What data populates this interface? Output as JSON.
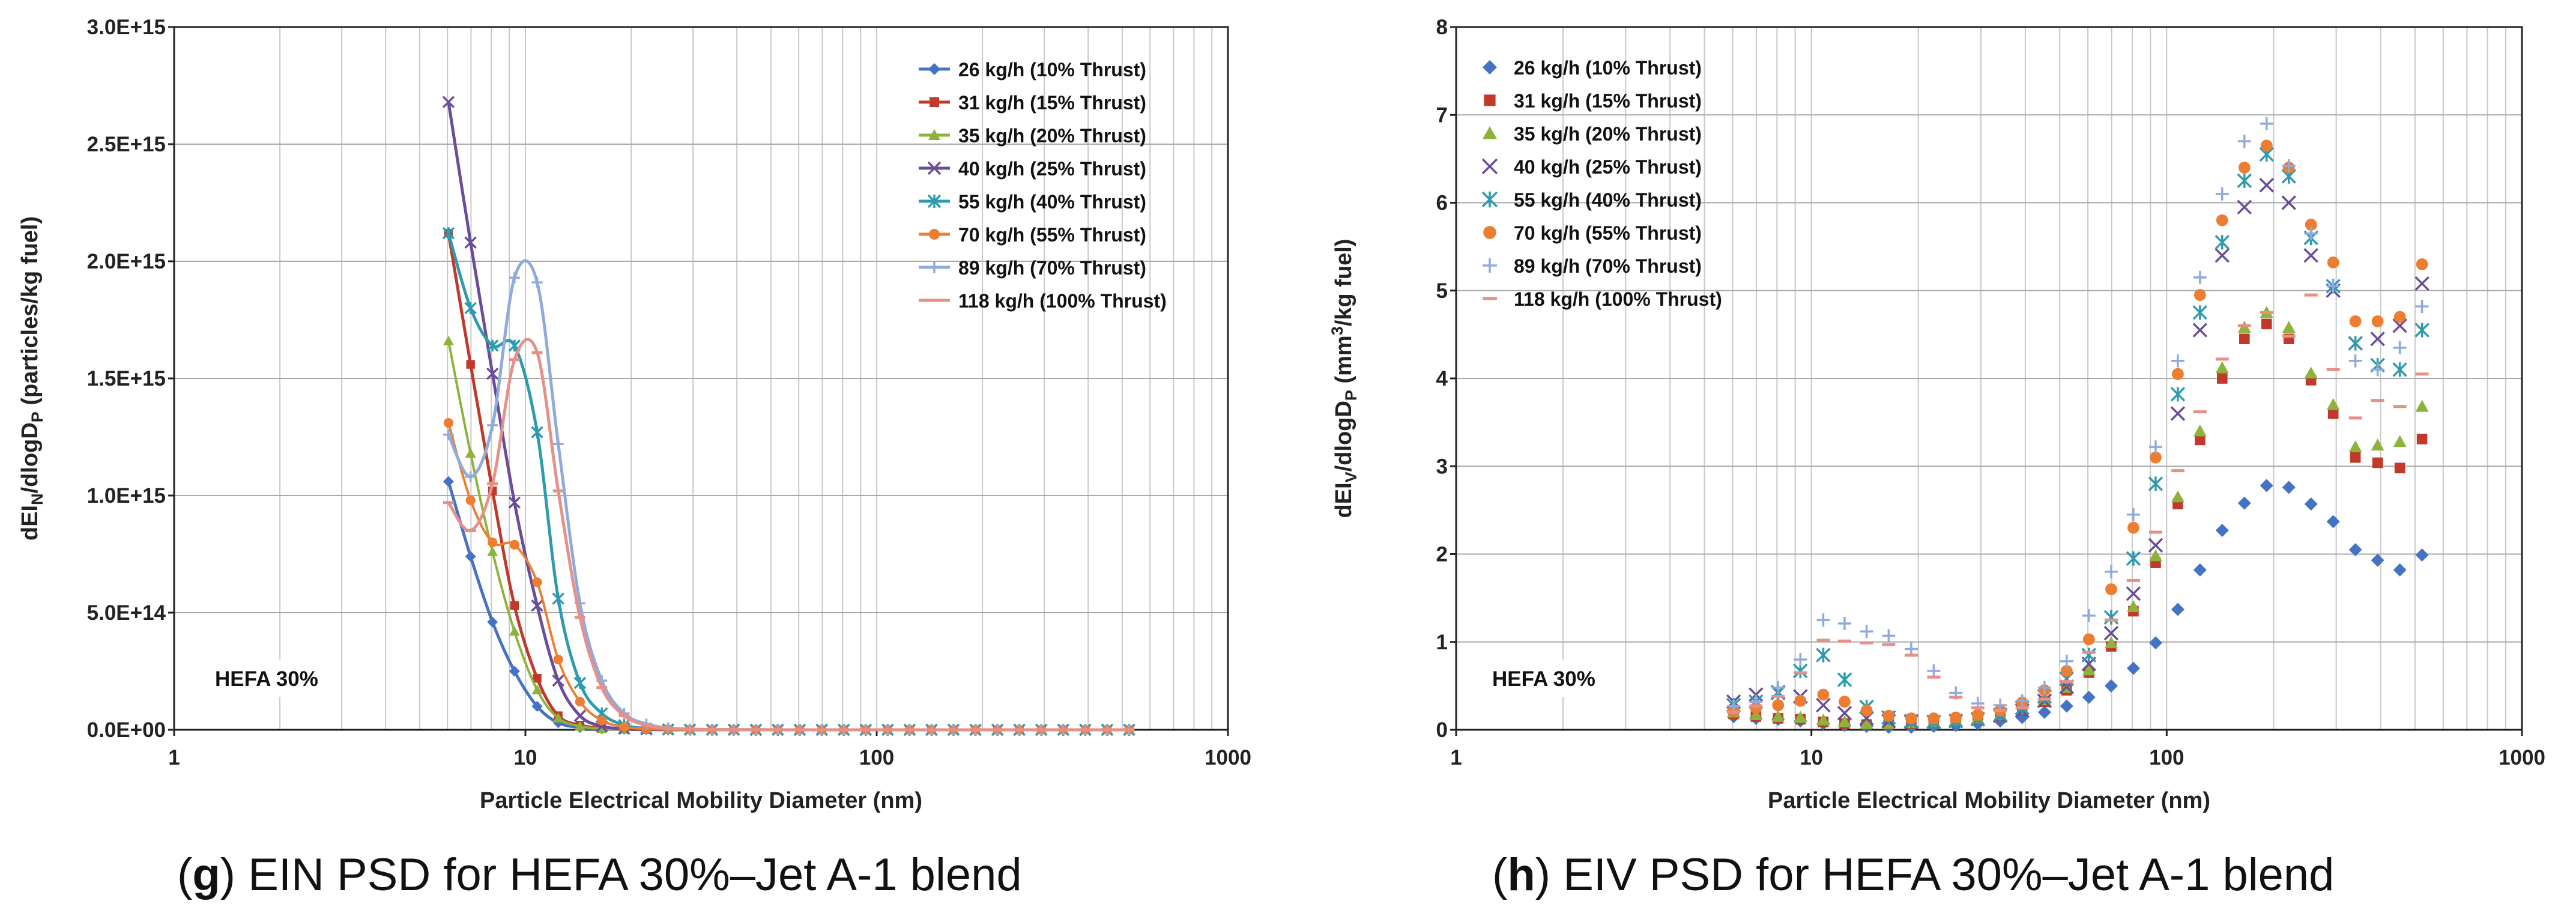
{
  "chart_data": [
    {
      "id": "g",
      "type": "line",
      "x_scale": "log",
      "xlim": [
        1,
        1000
      ],
      "ylim": [
        0,
        3000000000000000.0
      ],
      "x_ticks": [
        "1",
        "10",
        "100",
        "1000"
      ],
      "y_ticks": [
        "0.0E+00",
        "5.0E+14",
        "1.0E+15",
        "1.5E+15",
        "2.0E+15",
        "2.5E+15",
        "3.0E+15"
      ],
      "xlabel": "Particle Electrical Mobility Diameter (nm)",
      "ylabel_main": "dEI",
      "ylabel_sub1": "N",
      "ylabel_mid": "/dlogD",
      "ylabel_sub2": "P",
      "ylabel_tail": " (particles/kg fuel)",
      "annotation": "HEFA 30%",
      "caption_letter": "g",
      "caption_text": "EIN PSD for HEFA 30%–Jet A-1 blend",
      "legend_position": "top-right",
      "x": [
        6.04,
        6.98,
        8.06,
        9.31,
        10.8,
        12.4,
        14.3,
        16.5,
        19.1,
        22.1,
        25.5,
        29.4,
        34.0,
        39.2,
        45.3,
        52.3,
        60.4,
        69.8,
        80.6,
        93.1,
        107.5,
        124.1,
        143.3,
        165.5,
        191.1,
        220.7,
        254.8,
        294.3,
        339.8,
        392.4,
        453.2,
        523.3
      ],
      "series": [
        {
          "name": "26 kg/h (10% Thrust)",
          "color": "#4472c4",
          "marker": "diamond",
          "values": [
            1060000000000000.0,
            740000000000000.0,
            460000000000000.0,
            250000000000000.0,
            100000000000000.0,
            30000000000000.0,
            10000000000000.0,
            4000000000000.0,
            2000000000000.0,
            1000000000000.0,
            500000000000.0,
            300000000000.0,
            200000000000.0,
            100000000000.0,
            100000000000.0,
            100000000000.0,
            100000000000.0,
            100000000000.0,
            100000000000.0,
            100000000000.0,
            100000000000.0,
            100000000000.0,
            100000000000.0,
            100000000000.0,
            100000000000.0,
            100000000000.0,
            100000000000.0,
            100000000000.0,
            100000000000.0,
            100000000000.0,
            100000000000.0,
            100000000000.0
          ]
        },
        {
          "name": "31 kg/h (15% Thrust)",
          "color": "#c0392b",
          "marker": "square",
          "values": [
            2120000000000000.0,
            1560000000000000.0,
            1020000000000000.0,
            530000000000000.0,
            220000000000000.0,
            60000000000000.0,
            20000000000000.0,
            6000000000000.0,
            2000000000000.0,
            1000000000000.0,
            500000000000.0,
            300000000000.0,
            200000000000.0,
            100000000000.0,
            100000000000.0,
            100000000000.0,
            100000000000.0,
            100000000000.0,
            100000000000.0,
            100000000000.0,
            100000000000.0,
            100000000000.0,
            100000000000.0,
            100000000000.0,
            100000000000.0,
            100000000000.0,
            100000000000.0,
            100000000000.0,
            100000000000.0,
            100000000000.0,
            100000000000.0,
            100000000000.0
          ]
        },
        {
          "name": "35 kg/h (20% Thrust)",
          "color": "#8db33c",
          "marker": "triangle",
          "values": [
            1660000000000000.0,
            1180000000000000.0,
            760000000000000.0,
            420000000000000.0,
            170000000000000.0,
            50000000000000.0,
            15000000000000.0,
            5000000000000.0,
            2000000000000.0,
            1000000000000.0,
            500000000000.0,
            300000000000.0,
            200000000000.0,
            100000000000.0,
            100000000000.0,
            100000000000.0,
            100000000000.0,
            100000000000.0,
            100000000000.0,
            100000000000.0,
            100000000000.0,
            100000000000.0,
            100000000000.0,
            100000000000.0,
            100000000000.0,
            100000000000.0,
            100000000000.0,
            100000000000.0,
            100000000000.0,
            100000000000.0,
            100000000000.0,
            100000000000.0
          ]
        },
        {
          "name": "40 kg/h (25% Thrust)",
          "color": "#6b4c9a",
          "marker": "x",
          "values": [
            2680000000000000.0,
            2080000000000000.0,
            1520000000000000.0,
            970000000000000.0,
            530000000000000.0,
            210000000000000.0,
            60000000000000.0,
            15000000000000.0,
            5000000000000.0,
            2000000000000.0,
            1000000000000.0,
            500000000000.0,
            300000000000.0,
            200000000000.0,
            100000000000.0,
            100000000000.0,
            100000000000.0,
            100000000000.0,
            100000000000.0,
            100000000000.0,
            100000000000.0,
            100000000000.0,
            100000000000.0,
            100000000000.0,
            100000000000.0,
            100000000000.0,
            100000000000.0,
            100000000000.0,
            100000000000.0,
            100000000000.0,
            100000000000.0,
            100000000000.0
          ]
        },
        {
          "name": "55 kg/h (40% Thrust)",
          "color": "#2e9ab0",
          "marker": "asterisk",
          "values": [
            2120000000000000.0,
            1800000000000000.0,
            1640000000000000.0,
            1640000000000000.0,
            1270000000000000.0,
            560000000000000.0,
            200000000000000.0,
            70000000000000.0,
            20000000000000.0,
            6000000000000.0,
            2000000000000.0,
            1000000000000.0,
            500000000000.0,
            300000000000.0,
            200000000000.0,
            100000000000.0,
            100000000000.0,
            100000000000.0,
            100000000000.0,
            100000000000.0,
            100000000000.0,
            100000000000.0,
            100000000000.0,
            100000000000.0,
            100000000000.0,
            100000000000.0,
            100000000000.0,
            100000000000.0,
            100000000000.0,
            100000000000.0,
            100000000000.0,
            100000000000.0
          ]
        },
        {
          "name": "70 kg/h (55% Thrust)",
          "color": "#ed7d31",
          "marker": "circle",
          "values": [
            1310000000000000.0,
            980000000000000.0,
            800000000000000.0,
            790000000000000.0,
            630000000000000.0,
            300000000000000.0,
            120000000000000.0,
            40000000000000.0,
            12000000000000.0,
            4000000000000.0,
            1500000000000.0,
            500000000000.0,
            300000000000.0,
            200000000000.0,
            100000000000.0,
            100000000000.0,
            100000000000.0,
            100000000000.0,
            100000000000.0,
            100000000000.0,
            100000000000.0,
            100000000000.0,
            100000000000.0,
            100000000000.0,
            100000000000.0,
            100000000000.0,
            100000000000.0,
            100000000000.0,
            100000000000.0,
            100000000000.0,
            100000000000.0,
            100000000000.0
          ]
        },
        {
          "name": "89 kg/h (70% Thrust)",
          "color": "#8faadc",
          "marker": "plus",
          "values": [
            1260000000000000.0,
            1080000000000000.0,
            1300000000000000.0,
            1930000000000000.0,
            1910000000000000.0,
            1220000000000000.0,
            540000000000000.0,
            210000000000000.0,
            70000000000000.0,
            25000000000000.0,
            8000000000000.0,
            3000000000000.0,
            1000000000000.0,
            500000000000.0,
            300000000000.0,
            200000000000.0,
            100000000000.0,
            100000000000.0,
            100000000000.0,
            100000000000.0,
            100000000000.0,
            100000000000.0,
            100000000000.0,
            100000000000.0,
            100000000000.0,
            100000000000.0,
            100000000000.0,
            100000000000.0,
            100000000000.0,
            100000000000.0,
            100000000000.0,
            100000000000.0
          ]
        },
        {
          "name": "118 kg/h (100% Thrust)",
          "color": "#e6908a",
          "marker": "dash",
          "values": [
            970000000000000.0,
            850000000000000.0,
            1050000000000000.0,
            1580000000000000.0,
            1610000000000000.0,
            1020000000000000.0,
            480000000000000.0,
            180000000000000.0,
            60000000000000.0,
            20000000000000.0,
            7000000000000.0,
            2500000000000.0,
            1000000000000.0,
            500000000000.0,
            300000000000.0,
            200000000000.0,
            100000000000.0,
            100000000000.0,
            100000000000.0,
            100000000000.0,
            100000000000.0,
            100000000000.0,
            100000000000.0,
            100000000000.0,
            100000000000.0,
            100000000000.0,
            100000000000.0,
            100000000000.0,
            100000000000.0,
            100000000000.0,
            100000000000.0,
            100000000000.0
          ]
        }
      ]
    },
    {
      "id": "h",
      "type": "scatter",
      "x_scale": "log",
      "xlim": [
        1,
        1000
      ],
      "ylim": [
        0,
        8
      ],
      "x_ticks": [
        "1",
        "10",
        "100",
        "1000"
      ],
      "y_ticks": [
        "0",
        "1",
        "2",
        "3",
        "4",
        "5",
        "6",
        "7",
        "8"
      ],
      "xlabel": "Particle Electrical Mobility Diameter (nm)",
      "ylabel_main": "dEI",
      "ylabel_sub1": "V",
      "ylabel_mid": "/dlogD",
      "ylabel_sub2": "P",
      "ylabel_tail_a": " (mm",
      "ylabel_sup": "3",
      "ylabel_tail_b": "/kg fuel)",
      "annotation": "HEFA 30%",
      "caption_letter": "h",
      "caption_text": "EIV PSD for HEFA 30%–Jet A-1 blend",
      "legend_position": "top-left",
      "x": [
        6.04,
        6.98,
        8.06,
        9.31,
        10.8,
        12.4,
        14.3,
        16.5,
        19.1,
        22.1,
        25.5,
        29.4,
        34.0,
        39.2,
        45.3,
        52.3,
        60.4,
        69.8,
        80.6,
        93.1,
        107.5,
        124.1,
        143.3,
        165.5,
        191.1,
        220.7,
        254.8,
        294.3,
        339.8,
        392.4,
        453.2,
        523.3
      ],
      "series": [
        {
          "name": "26 kg/h (10% Thrust)",
          "color": "#4472c4",
          "marker": "diamond",
          "values": [
            0.15,
            0.13,
            0.12,
            0.1,
            0.07,
            0.05,
            0.04,
            0.03,
            0.03,
            0.04,
            0.05,
            0.07,
            0.1,
            0.14,
            0.2,
            0.27,
            0.37,
            0.5,
            0.7,
            0.99,
            1.37,
            1.82,
            2.27,
            2.58,
            2.78,
            2.76,
            2.57,
            2.37,
            2.05,
            1.93,
            1.82,
            1.99
          ]
        },
        {
          "name": "31 kg/h (15% Thrust)",
          "color": "#c0392b",
          "marker": "square",
          "values": [
            0.18,
            0.15,
            0.13,
            0.12,
            0.09,
            0.07,
            0.06,
            0.06,
            0.07,
            0.08,
            0.1,
            0.12,
            0.16,
            0.22,
            0.32,
            0.45,
            0.65,
            0.95,
            1.35,
            1.9,
            2.57,
            3.3,
            4.0,
            4.45,
            4.62,
            4.45,
            3.98,
            3.6,
            3.1,
            3.04,
            2.98,
            3.31
          ]
        },
        {
          "name": "35 kg/h (20% Thrust)",
          "color": "#8db33c",
          "marker": "triangle",
          "values": [
            0.2,
            0.17,
            0.15,
            0.14,
            0.11,
            0.09,
            0.07,
            0.07,
            0.08,
            0.09,
            0.11,
            0.13,
            0.17,
            0.24,
            0.34,
            0.48,
            0.68,
            0.99,
            1.4,
            1.98,
            2.65,
            3.4,
            4.12,
            4.58,
            4.75,
            4.58,
            4.06,
            3.7,
            3.22,
            3.24,
            3.28,
            3.68
          ]
        },
        {
          "name": "40 kg/h (25% Thrust)",
          "color": "#6b4c9a",
          "marker": "x",
          "values": [
            0.32,
            0.4,
            0.42,
            0.38,
            0.28,
            0.19,
            0.13,
            0.1,
            0.09,
            0.09,
            0.1,
            0.12,
            0.16,
            0.22,
            0.33,
            0.49,
            0.75,
            1.1,
            1.55,
            2.1,
            3.6,
            4.55,
            5.4,
            5.95,
            6.2,
            6.0,
            5.4,
            5.0,
            4.4,
            4.45,
            4.6,
            5.08
          ]
        },
        {
          "name": "55 kg/h (40% Thrust)",
          "color": "#2e9ab0",
          "marker": "asterisk",
          "values": [
            0.28,
            0.32,
            0.43,
            0.67,
            0.85,
            0.57,
            0.26,
            0.14,
            0.1,
            0.09,
            0.1,
            0.12,
            0.17,
            0.25,
            0.38,
            0.58,
            0.85,
            1.28,
            1.95,
            2.8,
            3.82,
            4.75,
            5.55,
            6.25,
            6.55,
            6.3,
            5.6,
            5.05,
            4.4,
            4.15,
            4.1,
            4.55
          ]
        },
        {
          "name": "70 kg/h (55% Thrust)",
          "color": "#ed7d31",
          "marker": "circle",
          "values": [
            0.22,
            0.25,
            0.28,
            0.33,
            0.4,
            0.32,
            0.22,
            0.16,
            0.13,
            0.13,
            0.14,
            0.17,
            0.22,
            0.31,
            0.45,
            0.67,
            1.03,
            1.6,
            2.3,
            3.1,
            4.05,
            4.95,
            5.8,
            6.4,
            6.65,
            6.4,
            5.75,
            5.32,
            4.65,
            4.65,
            4.7,
            5.3
          ]
        },
        {
          "name": "89 kg/h (70% Thrust)",
          "color": "#8faadc",
          "marker": "plus",
          "values": [
            0.27,
            0.32,
            0.48,
            0.8,
            1.25,
            1.21,
            1.12,
            1.07,
            0.92,
            0.67,
            0.42,
            0.3,
            0.28,
            0.33,
            0.48,
            0.78,
            1.3,
            1.8,
            2.45,
            3.22,
            4.2,
            5.15,
            6.1,
            6.7,
            6.9,
            6.42,
            5.65,
            5.05,
            4.2,
            4.1,
            4.35,
            4.82
          ]
        },
        {
          "name": "118 kg/h (100% Thrust)",
          "color": "#e6908a",
          "marker": "dash",
          "values": [
            0.2,
            0.27,
            0.38,
            0.65,
            1.02,
            1.01,
            0.99,
            0.97,
            0.85,
            0.6,
            0.37,
            0.25,
            0.22,
            0.25,
            0.35,
            0.55,
            0.88,
            1.25,
            1.7,
            2.25,
            2.95,
            3.62,
            4.22,
            4.6,
            4.75,
            4.48,
            4.95,
            4.1,
            3.55,
            3.75,
            3.68,
            4.05
          ]
        }
      ]
    }
  ]
}
